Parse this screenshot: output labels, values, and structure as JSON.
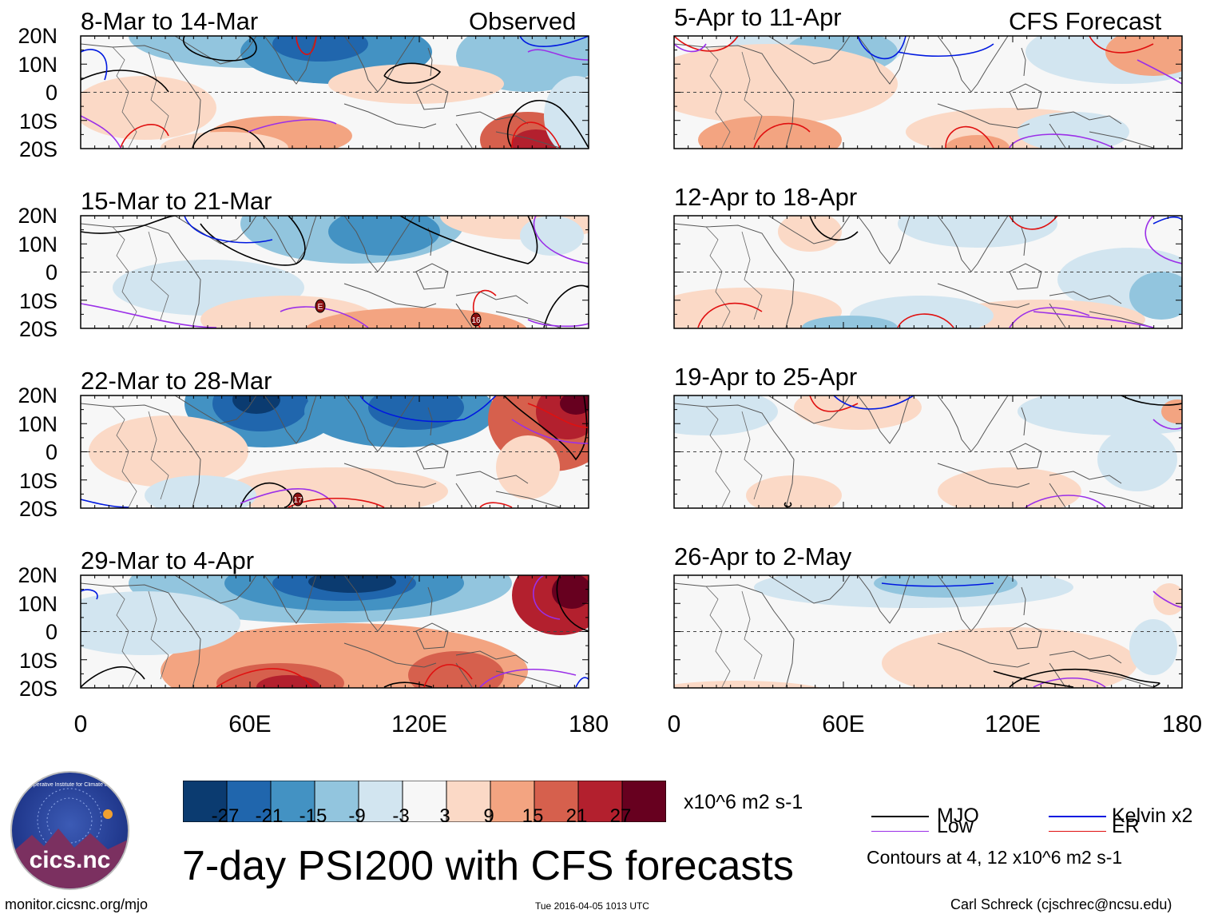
{
  "left_column_tag": "Observed",
  "right_column_tag": "CFS Forecast",
  "panels_left": [
    {
      "date_range": "8-Mar to 14-Mar"
    },
    {
      "date_range": "15-Mar to 21-Mar"
    },
    {
      "date_range": "22-Mar to 28-Mar"
    },
    {
      "date_range": "29-Mar to 4-Apr"
    }
  ],
  "panels_right": [
    {
      "date_range": "5-Apr to 11-Apr"
    },
    {
      "date_range": "12-Apr to 18-Apr"
    },
    {
      "date_range": "19-Apr to 25-Apr"
    },
    {
      "date_range": "26-Apr to 2-May"
    }
  ],
  "latitude_labels": [
    "20N",
    "10N",
    "0",
    "10S",
    "20S"
  ],
  "longitude_labels": [
    "0",
    "60E",
    "120E",
    "180"
  ],
  "storm_markers": [
    "E",
    "16",
    "17"
  ],
  "colorbar": {
    "tick_labels": [
      "-27",
      "-21",
      "-15",
      "-9",
      "-3",
      "3",
      "9",
      "15",
      "21",
      "27"
    ],
    "units": "x10^6 m2 s-1",
    "colors": [
      "#0b3b70",
      "#2066ad",
      "#4392c3",
      "#92c5de",
      "#d2e5f0",
      "#f7f7f7",
      "#fbd9c6",
      "#f3a481",
      "#d6604d",
      "#b3202e",
      "#67001f"
    ]
  },
  "legend": {
    "items": [
      {
        "label": "MJO",
        "color": "#000000"
      },
      {
        "label": "Kelvin x2",
        "color": "#0019e0"
      },
      {
        "label": "Low",
        "color": "#9b2fe8"
      },
      {
        "label": "ER",
        "color": "#e01010"
      }
    ],
    "note": "Contours at 4, 12 x10^6 m2 s-1"
  },
  "main_title": "7-day PSI200 with CFS forecasts",
  "logo_text": "cics.nc",
  "logo_ring_text": "Cooperative Institute for Climate and Satellites",
  "footer": {
    "url": "monitor.cicsnc.org/mjo",
    "timestamp": "Tue 2016-04-05 1013 UTC",
    "author": "Carl Schreck (cjschrec@ncsu.edu)"
  }
}
